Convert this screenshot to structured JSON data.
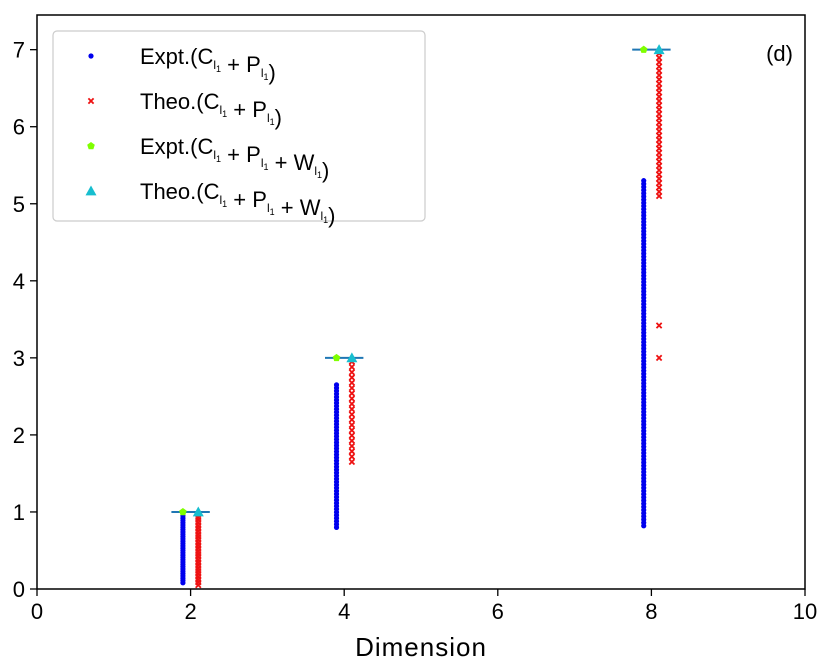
{
  "chart_data": {
    "type": "scatter",
    "xlabel": "Dimension",
    "ylabel": "",
    "xlim": [
      0,
      10
    ],
    "ylim": [
      0,
      7.45
    ],
    "x_ticks": [
      0,
      2,
      4,
      6,
      8,
      10
    ],
    "y_ticks": [
      0,
      1,
      2,
      3,
      4,
      5,
      6,
      7
    ],
    "grid": false,
    "annotation": "(d)",
    "legend_position": "top-left",
    "reference_lines": [
      {
        "y": 1,
        "x_range": [
          1.75,
          2.25
        ],
        "color": "#1f77b4"
      },
      {
        "y": 3,
        "x_range": [
          3.75,
          4.25
        ],
        "color": "#1f77b4"
      },
      {
        "y": 7,
        "x_range": [
          7.75,
          8.25
        ],
        "color": "#1f77b4"
      }
    ],
    "series": [
      {
        "name_parts": {
          "prefix": "Expt.(",
          "terms": [
            {
              "letter": "C",
              "sub": "l",
              "subsub": "1"
            },
            {
              "letter": "P",
              "sub": "l",
              "subsub": "1"
            }
          ],
          "suffix": ")"
        },
        "marker": "circle",
        "color": "#0000ee",
        "groups": [
          {
            "x": 1.9,
            "y_min": 0.08,
            "y_max": 0.95,
            "n": 30
          },
          {
            "x": 3.9,
            "y_min": 0.8,
            "y_max": 2.65,
            "n": 48
          },
          {
            "x": 7.9,
            "y_min": 0.82,
            "y_max": 5.3,
            "n": 110
          }
        ]
      },
      {
        "name_parts": {
          "prefix": "Theo.(",
          "terms": [
            {
              "letter": "C",
              "sub": "l",
              "subsub": "1"
            },
            {
              "letter": "P",
              "sub": "l",
              "subsub": "1"
            }
          ],
          "suffix": ")"
        },
        "marker": "x",
        "color": "#ee1111",
        "groups": [
          {
            "x": 2.1,
            "y_min": 0.05,
            "y_max": 0.97,
            "n": 26
          },
          {
            "x": 4.1,
            "y_min": 1.65,
            "y_max": 2.95,
            "n": 20
          },
          {
            "x": 8.1,
            "y_min": 5.1,
            "y_max": 6.95,
            "n": 34,
            "extra_y": [
              3.0,
              3.42
            ]
          }
        ]
      },
      {
        "name_parts": {
          "prefix": "Expt.(",
          "terms": [
            {
              "letter": "C",
              "sub": "l",
              "subsub": "1"
            },
            {
              "letter": "P",
              "sub": "l",
              "subsub": "1"
            },
            {
              "letter": "W",
              "sub": "l",
              "subsub": "1"
            }
          ],
          "suffix": ")"
        },
        "marker": "pentagon",
        "color": "#7fff00",
        "points": [
          [
            1.9,
            1
          ],
          [
            3.9,
            3
          ],
          [
            7.9,
            7
          ]
        ]
      },
      {
        "name_parts": {
          "prefix": "Theo.(",
          "terms": [
            {
              "letter": "C",
              "sub": "l",
              "subsub": "1"
            },
            {
              "letter": "P",
              "sub": "l",
              "subsub": "1"
            },
            {
              "letter": "W",
              "sub": "l",
              "subsub": "1"
            }
          ],
          "suffix": ")"
        },
        "marker": "triangle",
        "color": "#17becf",
        "points": [
          [
            2.1,
            1
          ],
          [
            4.1,
            3
          ],
          [
            8.1,
            7
          ]
        ]
      }
    ]
  }
}
